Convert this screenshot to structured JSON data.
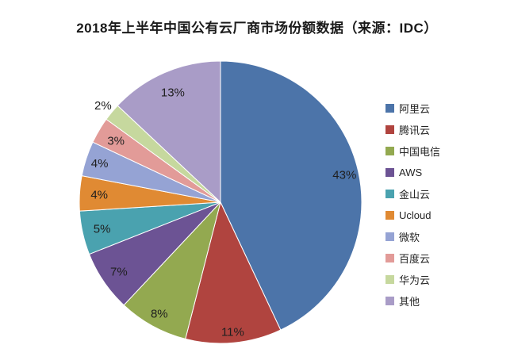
{
  "title": "2018年上半年中国公有云厂商市场份额数据（来源：IDC）",
  "chart_data": {
    "type": "pie",
    "title": "2018年上半年中国公有云厂商市场份额数据（来源：IDC）",
    "source_label": "来源：IDC",
    "categories": [
      "阿里云",
      "腾讯云",
      "中国电信",
      "AWS",
      "金山云",
      "Ucloud",
      "微软",
      "百度云",
      "华为云",
      "其他"
    ],
    "values": [
      43,
      11,
      8,
      7,
      5,
      4,
      4,
      3,
      2,
      13
    ],
    "unit": "%",
    "data_labels": [
      "43%",
      "11%",
      "8%",
      "7%",
      "5%",
      "4%",
      "4%",
      "3%",
      "2%",
      "13%"
    ],
    "colors": [
      "#4C74A9",
      "#B0443F",
      "#93A950",
      "#6C5394",
      "#4AA2AF",
      "#E08A33",
      "#95A3D4",
      "#E29B98",
      "#C6D89E",
      "#A99CC7"
    ],
    "start_angle": 0,
    "direction": "clockwise",
    "legend_position": "right",
    "slice_border_color": "#ffffff",
    "label_color": "#1f1f1f",
    "background": "#ffffff"
  }
}
